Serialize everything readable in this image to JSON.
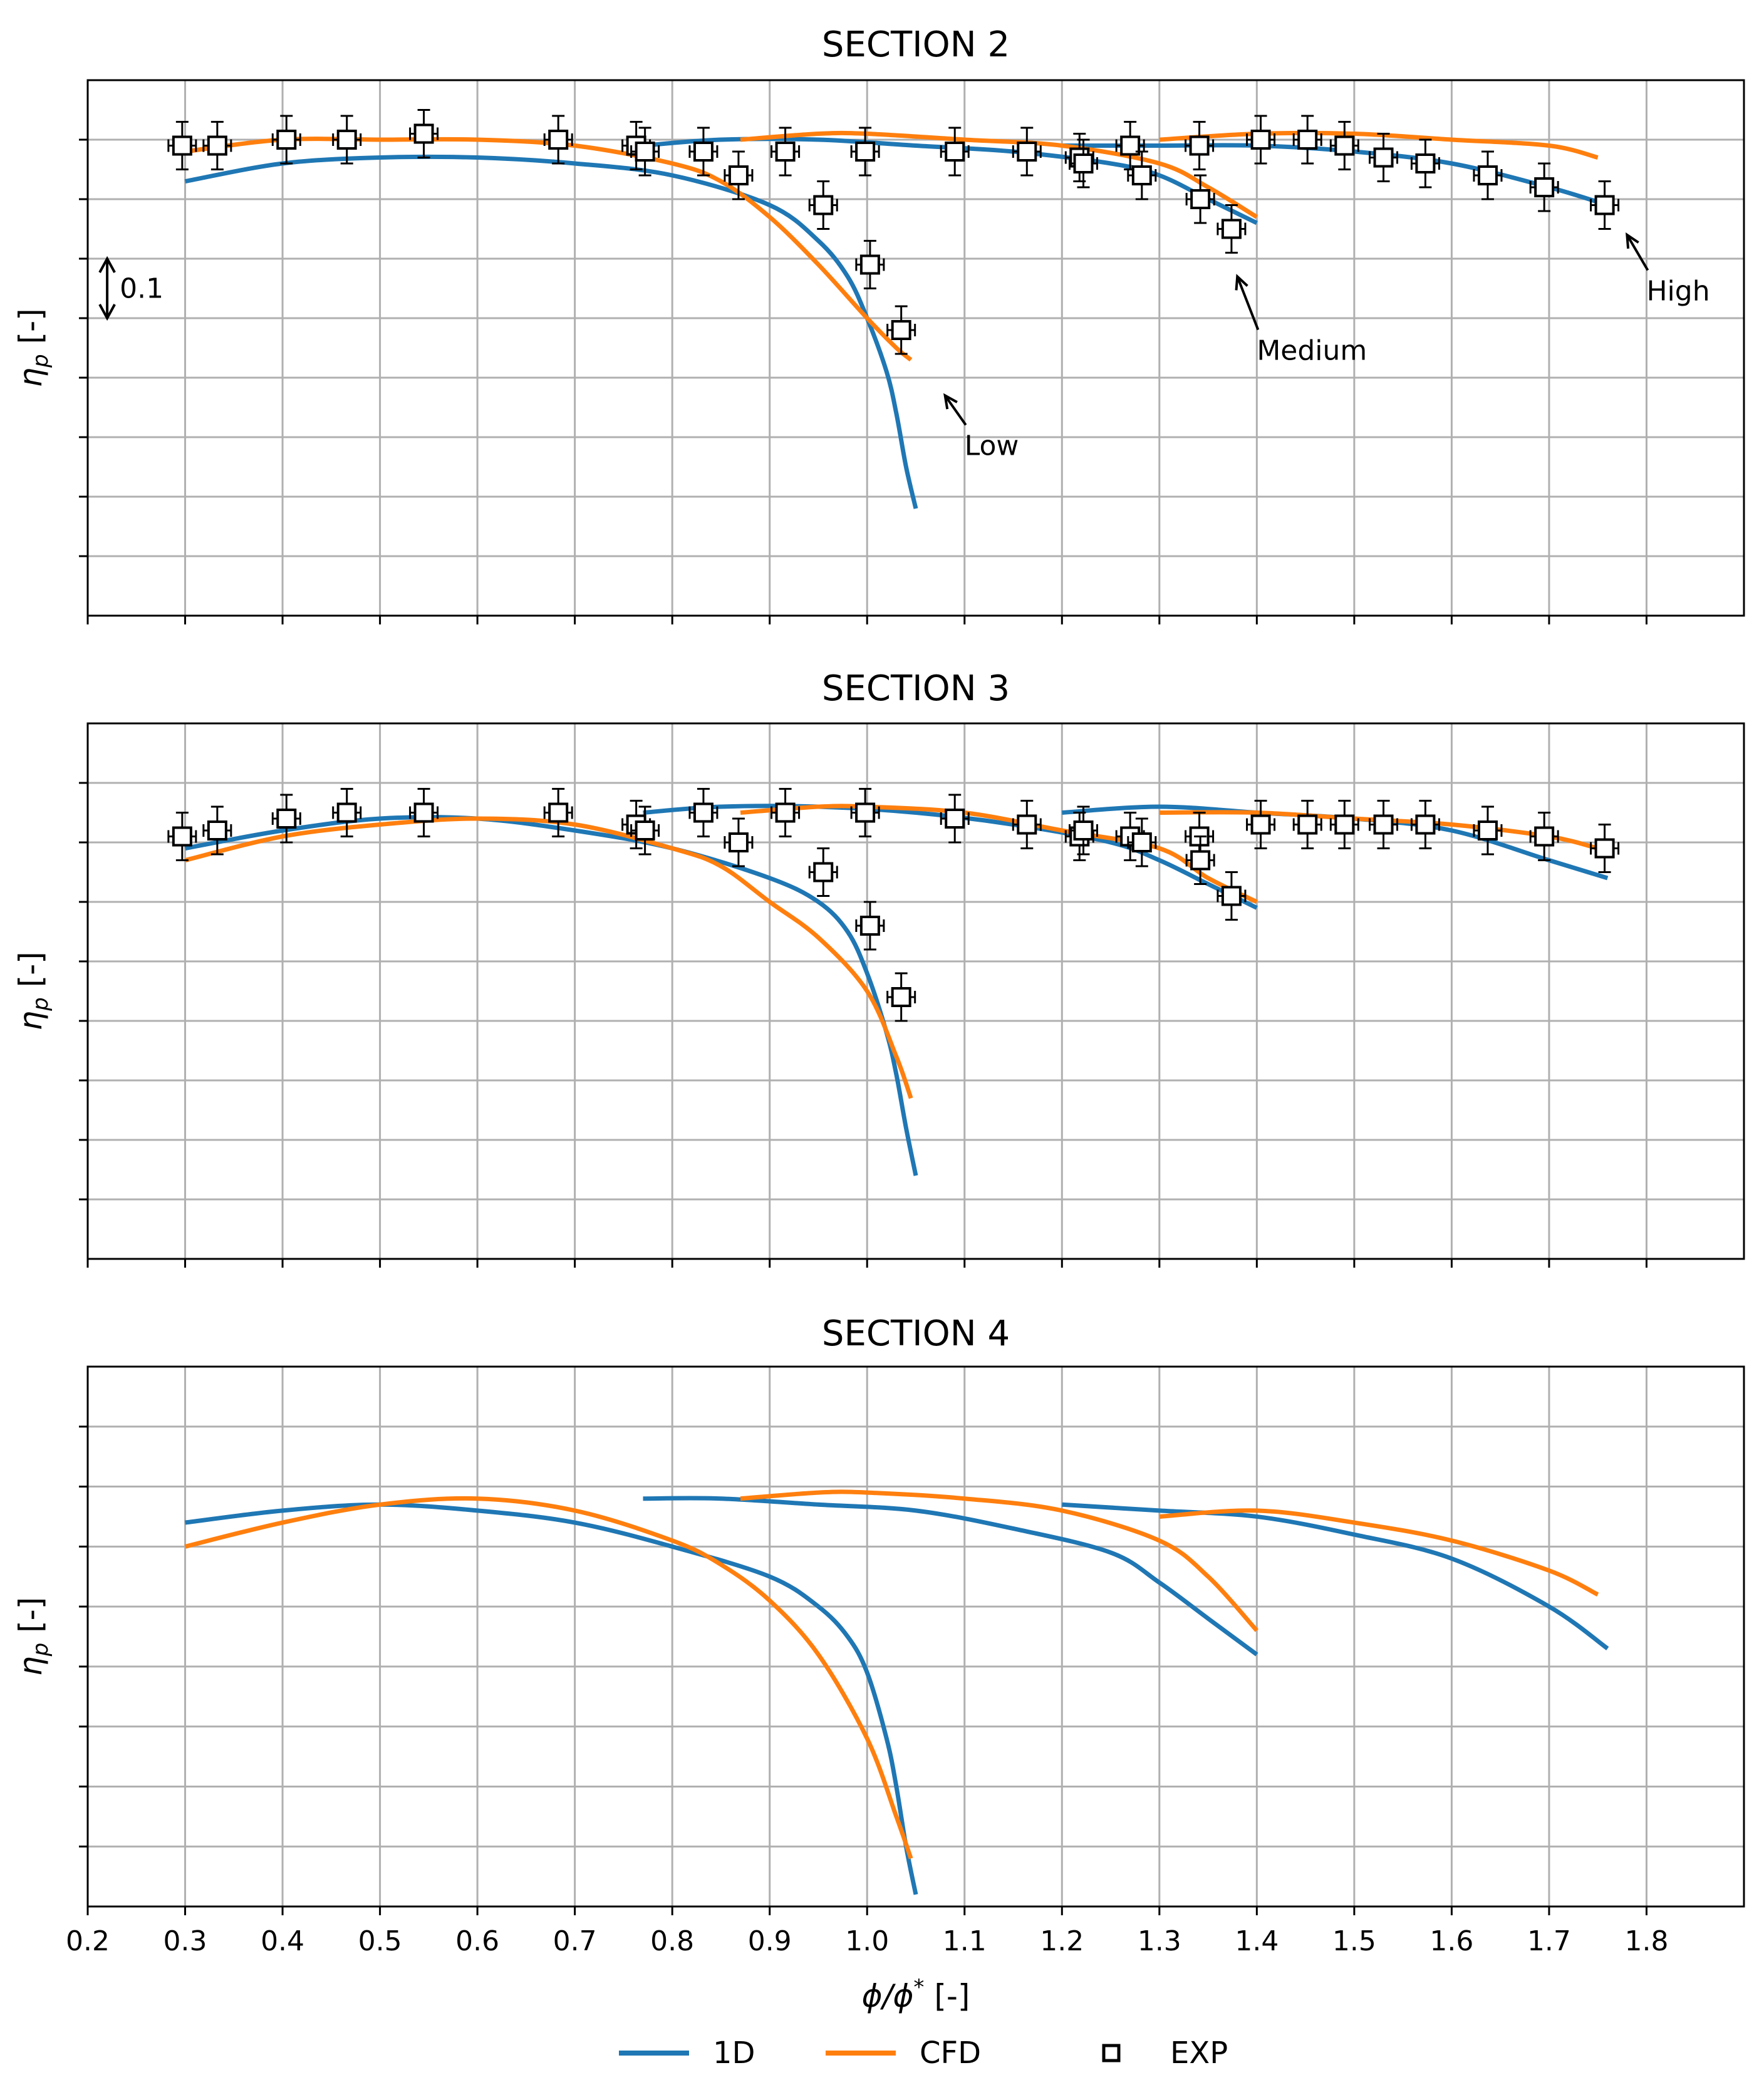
{
  "chart_data": [
    {
      "type": "line",
      "title": "SECTION 2",
      "ylabel": "η_p [-]",
      "xlim": [
        0.2,
        1.9
      ],
      "ylim": [
        0.0,
        0.9
      ],
      "scale_bar_label": "0.1",
      "annotations": [
        {
          "text": "Low",
          "arrow_to": [
            1.08,
            0.37
          ],
          "text_at": [
            1.1,
            0.27
          ]
        },
        {
          "text": "Medium",
          "arrow_to": [
            1.38,
            0.57
          ],
          "text_at": [
            1.4,
            0.43
          ]
        },
        {
          "text": "High",
          "arrow_to": [
            1.78,
            0.64
          ],
          "text_at": [
            1.8,
            0.53
          ]
        }
      ],
      "series": [
        {
          "name": "1D",
          "segment": "low",
          "x": [
            0.3,
            0.4,
            0.5,
            0.6,
            0.7,
            0.8,
            0.9,
            0.95,
            0.98,
            1.0,
            1.02,
            1.03,
            1.04,
            1.05
          ],
          "y": [
            0.73,
            0.76,
            0.77,
            0.77,
            0.76,
            0.74,
            0.69,
            0.63,
            0.57,
            0.5,
            0.41,
            0.34,
            0.25,
            0.18
          ]
        },
        {
          "name": "1D",
          "segment": "medium",
          "x": [
            0.77,
            0.85,
            0.95,
            1.05,
            1.15,
            1.25,
            1.3,
            1.35,
            1.4
          ],
          "y": [
            0.79,
            0.8,
            0.8,
            0.79,
            0.78,
            0.76,
            0.74,
            0.7,
            0.66
          ]
        },
        {
          "name": "1D",
          "segment": "high",
          "x": [
            1.2,
            1.3,
            1.4,
            1.5,
            1.6,
            1.7,
            1.76
          ],
          "y": [
            0.79,
            0.79,
            0.79,
            0.78,
            0.76,
            0.72,
            0.69
          ]
        },
        {
          "name": "CFD",
          "segment": "low",
          "x": [
            0.3,
            0.4,
            0.5,
            0.6,
            0.7,
            0.8,
            0.85,
            0.9,
            0.95,
            1.0,
            1.03,
            1.045
          ],
          "y": [
            0.78,
            0.8,
            0.8,
            0.8,
            0.79,
            0.76,
            0.73,
            0.67,
            0.59,
            0.5,
            0.45,
            0.43
          ]
        },
        {
          "name": "CFD",
          "segment": "medium",
          "x": [
            0.87,
            0.95,
            1.0,
            1.1,
            1.2,
            1.3,
            1.35,
            1.4
          ],
          "y": [
            0.8,
            0.81,
            0.81,
            0.8,
            0.79,
            0.76,
            0.72,
            0.67
          ]
        },
        {
          "name": "CFD",
          "segment": "high",
          "x": [
            1.3,
            1.4,
            1.5,
            1.6,
            1.7,
            1.75
          ],
          "y": [
            0.8,
            0.81,
            0.81,
            0.8,
            0.79,
            0.77
          ]
        },
        {
          "name": "EXP",
          "x": [
            0.297,
            0.333,
            0.404,
            0.466,
            0.545,
            0.683,
            0.763,
            0.772,
            0.832,
            0.868,
            0.916,
            0.955,
            0.998,
            1.003,
            1.035,
            1.09,
            1.164,
            1.218,
            1.222,
            1.27,
            1.282,
            1.341,
            1.342,
            1.374,
            1.404,
            1.452,
            1.49,
            1.53,
            1.573,
            1.637,
            1.695,
            1.757
          ],
          "y": [
            0.79,
            0.79,
            0.8,
            0.8,
            0.81,
            0.8,
            0.79,
            0.78,
            0.78,
            0.74,
            0.78,
            0.69,
            0.78,
            0.59,
            0.48,
            0.78,
            0.78,
            0.77,
            0.76,
            0.79,
            0.74,
            0.79,
            0.7,
            0.65,
            0.8,
            0.8,
            0.79,
            0.77,
            0.76,
            0.74,
            0.72,
            0.69
          ]
        }
      ]
    },
    {
      "type": "line",
      "title": "SECTION 3",
      "ylabel": "η_p [-]",
      "xlim": [
        0.2,
        1.9
      ],
      "ylim": [
        0.0,
        0.9
      ],
      "series": [
        {
          "name": "1D",
          "segment": "low",
          "x": [
            0.3,
            0.4,
            0.5,
            0.6,
            0.7,
            0.8,
            0.9,
            0.95,
            0.98,
            1.0,
            1.02,
            1.03,
            1.04,
            1.05
          ],
          "y": [
            0.69,
            0.72,
            0.74,
            0.74,
            0.72,
            0.69,
            0.64,
            0.6,
            0.55,
            0.48,
            0.38,
            0.31,
            0.22,
            0.14
          ]
        },
        {
          "name": "1D",
          "segment": "medium",
          "x": [
            0.77,
            0.85,
            0.95,
            1.05,
            1.15,
            1.25,
            1.3,
            1.35,
            1.4
          ],
          "y": [
            0.75,
            0.76,
            0.76,
            0.75,
            0.73,
            0.7,
            0.67,
            0.63,
            0.59
          ]
        },
        {
          "name": "1D",
          "segment": "high",
          "x": [
            1.2,
            1.3,
            1.4,
            1.5,
            1.6,
            1.7,
            1.76
          ],
          "y": [
            0.75,
            0.76,
            0.75,
            0.74,
            0.72,
            0.67,
            0.64
          ]
        },
        {
          "name": "CFD",
          "segment": "low",
          "x": [
            0.3,
            0.4,
            0.5,
            0.6,
            0.7,
            0.8,
            0.85,
            0.9,
            0.95,
            1.0,
            1.03,
            1.045
          ],
          "y": [
            0.67,
            0.71,
            0.73,
            0.74,
            0.73,
            0.69,
            0.66,
            0.6,
            0.54,
            0.45,
            0.34,
            0.27
          ]
        },
        {
          "name": "CFD",
          "segment": "medium",
          "x": [
            0.87,
            0.95,
            1.0,
            1.1,
            1.2,
            1.3,
            1.35,
            1.4
          ],
          "y": [
            0.75,
            0.76,
            0.76,
            0.75,
            0.72,
            0.69,
            0.64,
            0.6
          ]
        },
        {
          "name": "CFD",
          "segment": "high",
          "x": [
            1.3,
            1.4,
            1.5,
            1.6,
            1.7,
            1.75
          ],
          "y": [
            0.75,
            0.75,
            0.74,
            0.73,
            0.71,
            0.69
          ]
        },
        {
          "name": "EXP",
          "x": [
            0.297,
            0.333,
            0.404,
            0.466,
            0.545,
            0.683,
            0.763,
            0.772,
            0.832,
            0.868,
            0.916,
            0.955,
            0.998,
            1.003,
            1.035,
            1.09,
            1.164,
            1.218,
            1.222,
            1.27,
            1.282,
            1.341,
            1.342,
            1.374,
            1.404,
            1.452,
            1.49,
            1.53,
            1.573,
            1.637,
            1.695,
            1.757
          ],
          "y": [
            0.71,
            0.72,
            0.74,
            0.75,
            0.75,
            0.75,
            0.73,
            0.72,
            0.75,
            0.7,
            0.75,
            0.65,
            0.75,
            0.56,
            0.44,
            0.74,
            0.73,
            0.71,
            0.72,
            0.71,
            0.7,
            0.71,
            0.67,
            0.61,
            0.73,
            0.73,
            0.73,
            0.73,
            0.73,
            0.72,
            0.71,
            0.69
          ]
        }
      ]
    },
    {
      "type": "line",
      "title": "SECTION 4",
      "ylabel": "η_p [-]",
      "xlabel": "ϕ/ϕ* [-]",
      "xlim": [
        0.2,
        1.9
      ],
      "ylim": [
        0.0,
        0.9
      ],
      "xticks": [
        "0.2",
        "0.3",
        "0.4",
        "0.5",
        "0.6",
        "0.7",
        "0.8",
        "0.9",
        "1.0",
        "1.1",
        "1.2",
        "1.3",
        "1.4",
        "1.5",
        "1.6",
        "1.7",
        "1.8"
      ],
      "series": [
        {
          "name": "1D",
          "segment": "low",
          "x": [
            0.3,
            0.4,
            0.5,
            0.6,
            0.7,
            0.8,
            0.9,
            0.95,
            0.98,
            1.0,
            1.02,
            1.03,
            1.04,
            1.05
          ],
          "y": [
            0.64,
            0.66,
            0.67,
            0.66,
            0.64,
            0.6,
            0.55,
            0.5,
            0.45,
            0.39,
            0.28,
            0.2,
            0.1,
            0.02
          ]
        },
        {
          "name": "1D",
          "segment": "medium",
          "x": [
            0.77,
            0.85,
            0.95,
            1.05,
            1.15,
            1.25,
            1.3,
            1.35,
            1.4
          ],
          "y": [
            0.68,
            0.68,
            0.67,
            0.66,
            0.63,
            0.59,
            0.54,
            0.48,
            0.42
          ]
        },
        {
          "name": "1D",
          "segment": "high",
          "x": [
            1.2,
            1.3,
            1.4,
            1.5,
            1.6,
            1.7,
            1.76
          ],
          "y": [
            0.67,
            0.66,
            0.65,
            0.62,
            0.58,
            0.5,
            0.43
          ]
        },
        {
          "name": "CFD",
          "segment": "low",
          "x": [
            0.3,
            0.4,
            0.5,
            0.6,
            0.7,
            0.8,
            0.85,
            0.9,
            0.95,
            1.0,
            1.03,
            1.045
          ],
          "y": [
            0.6,
            0.64,
            0.67,
            0.68,
            0.66,
            0.61,
            0.57,
            0.51,
            0.42,
            0.28,
            0.15,
            0.08
          ]
        },
        {
          "name": "CFD",
          "segment": "medium",
          "x": [
            0.87,
            0.95,
            1.0,
            1.1,
            1.2,
            1.3,
            1.35,
            1.4
          ],
          "y": [
            0.68,
            0.69,
            0.69,
            0.68,
            0.66,
            0.61,
            0.55,
            0.46
          ]
        },
        {
          "name": "CFD",
          "segment": "high",
          "x": [
            1.3,
            1.4,
            1.5,
            1.6,
            1.7,
            1.75
          ],
          "y": [
            0.65,
            0.66,
            0.64,
            0.61,
            0.56,
            0.52
          ]
        }
      ]
    }
  ],
  "legend": {
    "placement": "bottom-center",
    "entries": [
      {
        "label": "1D",
        "kind": "line",
        "color": "#1f77b4"
      },
      {
        "label": "CFD",
        "kind": "line",
        "color": "#ff7f0e"
      },
      {
        "label": "EXP",
        "kind": "marker",
        "color": "#000000"
      }
    ]
  },
  "colors": {
    "1D": "#1f77b4",
    "CFD": "#ff7f0e",
    "EXP": "#000000",
    "grid": "#b0b0b0"
  }
}
